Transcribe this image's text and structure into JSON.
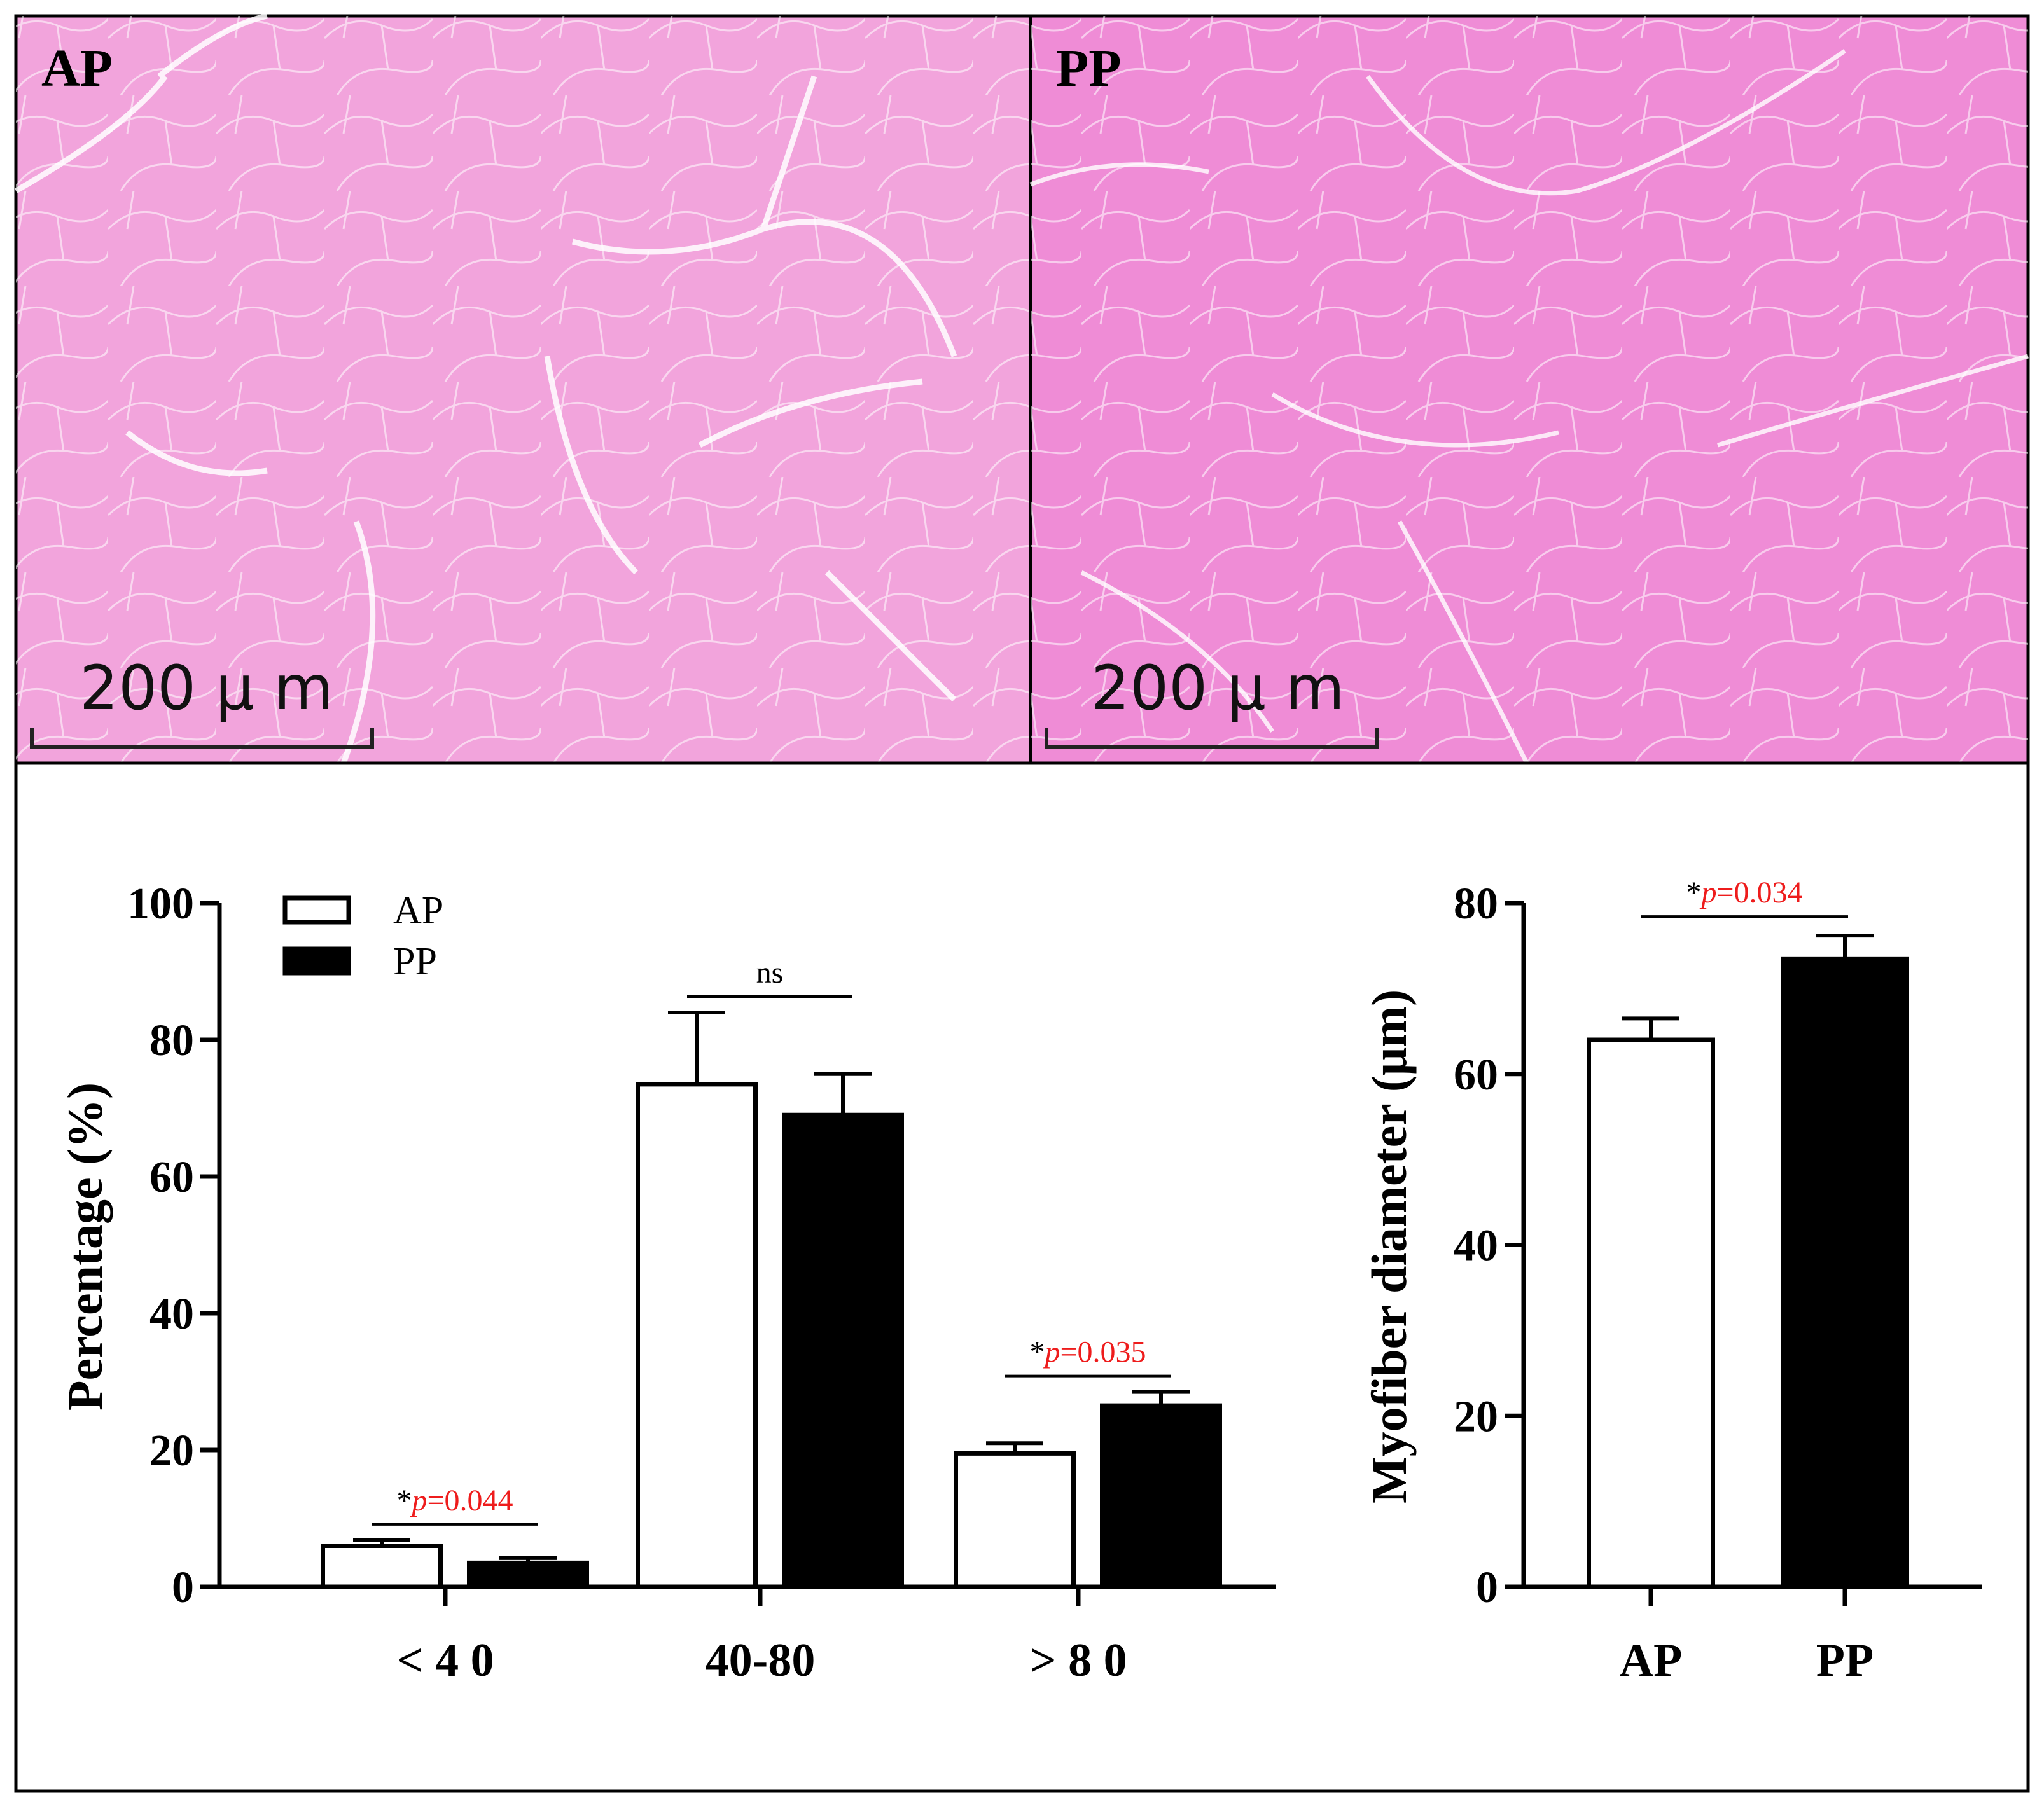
{
  "micrographs": [
    {
      "label": "AP",
      "scale_bar": "200 μ m",
      "tint": "#f2a4dc"
    },
    {
      "label": "PP",
      "scale_bar": "200 μ m",
      "tint": "#ef8cd6"
    }
  ],
  "chart_data": [
    {
      "type": "bar",
      "categories": [
        "< 4 0",
        "40-80",
        "> 8 0"
      ],
      "series": [
        {
          "name": "AP",
          "values": [
            6.0,
            73.5,
            19.5
          ],
          "errors": [
            0.8,
            10.5,
            1.5
          ],
          "fill": "#ffffff"
        },
        {
          "name": "PP",
          "values": [
            3.5,
            69.0,
            26.5
          ],
          "errors": [
            0.7,
            6.0,
            2.0
          ],
          "fill": "#000000"
        }
      ],
      "ylabel": "Percentage (%)",
      "ylim": [
        0,
        100
      ],
      "yticks": [
        "0",
        "20",
        "40",
        "60",
        "80",
        "100"
      ],
      "legend": "top-left",
      "significance": [
        {
          "category": 0,
          "star": "*",
          "p": "p",
          "value": "=0.044"
        },
        {
          "category": 1,
          "text": "ns"
        },
        {
          "category": 2,
          "star": "*",
          "p": "p",
          "value": "=0.035"
        }
      ]
    },
    {
      "type": "bar",
      "categories": [
        "AP",
        "PP"
      ],
      "values": [
        64.0,
        73.5
      ],
      "errors": [
        2.5,
        2.7
      ],
      "fills": [
        "#ffffff",
        "#000000"
      ],
      "ylabel": "Myofiber diameter (μm)",
      "ylim": [
        0,
        80
      ],
      "yticks": [
        "0",
        "20",
        "40",
        "60",
        "80"
      ],
      "significance": {
        "star": "*",
        "p": "p",
        "value": "=0.034"
      }
    }
  ]
}
